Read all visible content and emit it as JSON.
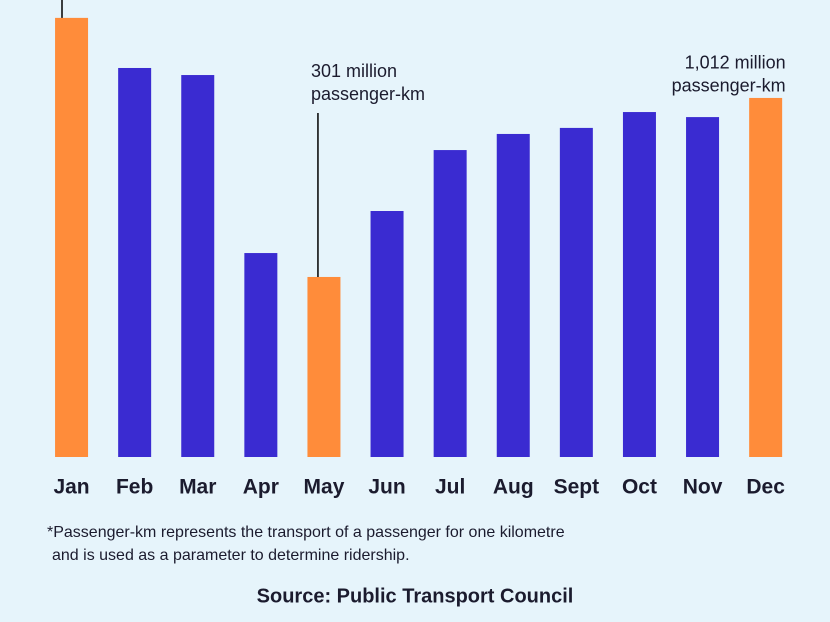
{
  "chart_data": {
    "type": "bar",
    "categories": [
      "Jan",
      "Feb",
      "Mar",
      "Apr",
      "May",
      "Jun",
      "Jul",
      "Aug",
      "Sept",
      "Oct",
      "Nov",
      "Dec"
    ],
    "values": [
      1330,
      1131,
      1103,
      396,
      301,
      563,
      805,
      869,
      893,
      956,
      936,
      1012
    ],
    "colors": [
      "#ff8c3a",
      "#3a2bd1",
      "#3a2bd1",
      "#3a2bd1",
      "#ff8c3a",
      "#3a2bd1",
      "#3a2bd1",
      "#3a2bd1",
      "#3a2bd1",
      "#3a2bd1",
      "#3a2bd1",
      "#ff8c3a"
    ],
    "ylim": [
      -414,
      1401
    ],
    "annotations": [
      {
        "category": "May",
        "text": [
          "301 million",
          "passenger-km"
        ]
      },
      {
        "category": "Dec",
        "text": [
          "1,012 million",
          "passenger-km"
        ]
      }
    ],
    "footnote": [
      "*Passenger-km represents the transport of a passenger for one kilometre",
      "and is used as a parameter to determine ridership."
    ],
    "source": "Source: Public Transport Council"
  }
}
